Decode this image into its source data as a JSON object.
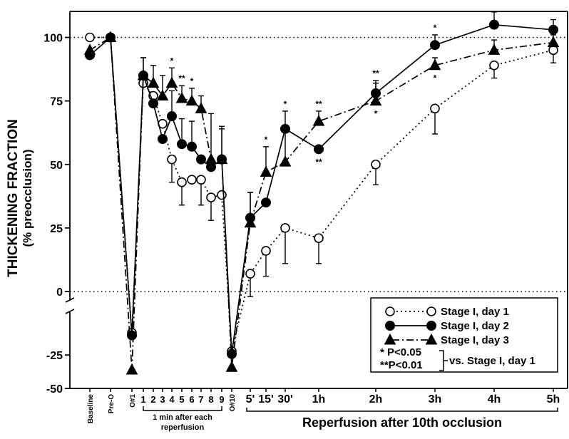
{
  "chart_data": {
    "type": "line",
    "ylabel": "THICKENING FRACTION",
    "ylabel_sub": "(% preocclusion)",
    "y_ticks": [
      "100",
      "75",
      "50",
      "25",
      "0",
      "-25",
      "-50"
    ],
    "y_axis_break": true,
    "reference_lines": [
      100,
      0
    ],
    "x_categories": [
      "Baseline",
      "Pre-O",
      "O#1",
      "1",
      "2",
      "3",
      "4",
      "5",
      "6",
      "7",
      "8",
      "9",
      "O#10",
      "5'",
      "15'",
      "30'",
      "1h",
      "2h",
      "3h",
      "4h",
      "5h"
    ],
    "x_group_labels": {
      "reperfusion_each": [
        "1 min after each",
        "reperfusion"
      ],
      "reperfusion_after": "Reperfusion after 10th occlusion"
    },
    "series": [
      {
        "name": "Stage I, day 1",
        "marker": "open-circle",
        "line": "dotted",
        "values": [
          100,
          100,
          -29,
          82,
          77,
          66,
          52,
          43,
          44,
          44,
          37,
          38,
          -36,
          7,
          16,
          25,
          21,
          50,
          72,
          89,
          95
        ],
        "err": [
          0,
          0,
          0,
          0,
          0,
          0,
          9,
          9,
          0,
          10,
          9,
          0,
          0,
          9,
          10,
          14,
          10,
          8,
          10,
          5,
          5
        ]
      },
      {
        "name": "Stage I, day 2",
        "marker": "filled-circle",
        "line": "solid",
        "values": [
          93,
          100,
          -30,
          85,
          74,
          60,
          69,
          58,
          57,
          52,
          49,
          52,
          -37,
          29,
          35,
          64,
          56,
          78,
          97,
          105,
          103
        ],
        "err": [
          0,
          0,
          0,
          7,
          0,
          0,
          10,
          10,
          10,
          0,
          0,
          12,
          0,
          10,
          0,
          7,
          0,
          5,
          4,
          5,
          4
        ]
      },
      {
        "name": "Stage I, day 3",
        "marker": "filled-triangle",
        "line": "dash-dot",
        "values": [
          95,
          100,
          -43,
          85,
          82,
          77,
          82,
          76,
          75,
          72,
          52,
          52,
          -42,
          27,
          47,
          51,
          67,
          75,
          89,
          95,
          98
        ],
        "err": [
          0,
          0,
          0,
          7,
          7,
          8,
          6,
          5,
          5,
          5,
          18,
          13,
          0,
          12,
          10,
          13,
          4,
          7,
          3,
          4,
          3
        ]
      }
    ],
    "significance": [
      {
        "x": "4",
        "mark": "*",
        "pos": "above"
      },
      {
        "x": "5",
        "mark": "**",
        "pos": "above"
      },
      {
        "x": "6",
        "mark": "*",
        "pos": "above"
      },
      {
        "x": "15'",
        "mark": "*",
        "pos": "above"
      },
      {
        "x": "30'",
        "mark": "*",
        "pos": "above"
      },
      {
        "x": "1h",
        "mark": "**",
        "pos": "above"
      },
      {
        "x": "1h",
        "mark": "**",
        "pos": "below"
      },
      {
        "x": "2h",
        "mark": "**",
        "pos": "above"
      },
      {
        "x": "2h",
        "mark": "*",
        "pos": "below"
      },
      {
        "x": "3h",
        "mark": "*",
        "pos": "above"
      },
      {
        "x": "3h",
        "mark": "*",
        "pos": "below"
      }
    ],
    "legend": {
      "entries": [
        "Stage I, day 1",
        "Stage I, day 2",
        "Stage I, day 3"
      ],
      "stats": [
        "* P<0.05",
        "**P<0.01"
      ],
      "stats_note": "vs. Stage I, day 1",
      "placement": "bottom-right"
    }
  }
}
